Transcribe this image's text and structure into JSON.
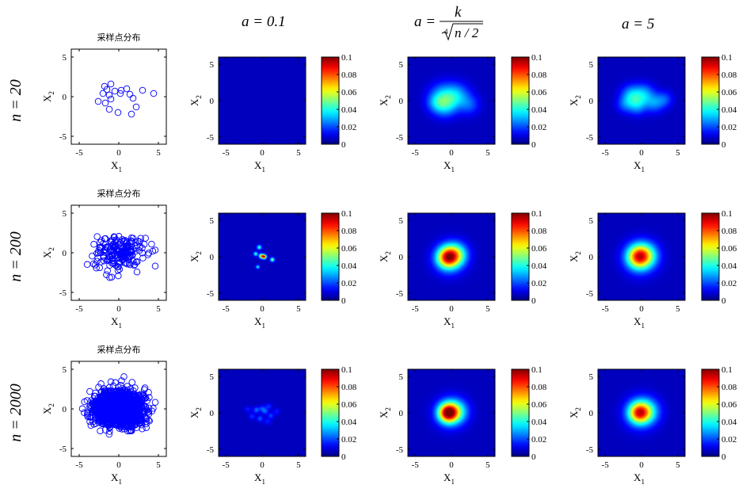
{
  "figure": {
    "column_titles": [
      "a = 0.1",
      "",
      "a = 5"
    ],
    "formula": {
      "a_eq": "a =",
      "numerator": "k",
      "root_index": "4",
      "radicand": "n / 2"
    },
    "row_labels": [
      "n = 20",
      "n = 200",
      "n = 2000"
    ],
    "scatter_title": "采样点分布",
    "x_axis_label": "X",
    "y_axis_label": "X",
    "x_sub": "1",
    "y_sub": "2",
    "colorbar_ticks": [
      "0.1",
      "0.08",
      "0.06",
      "0.04",
      "0.02",
      "0"
    ]
  },
  "colors": {
    "marker": "#0000ff",
    "colormap_low": "#00008f",
    "colormap_high": "#800000"
  },
  "chart_data": {
    "type": "figure-grid",
    "layout": {
      "rows": 3,
      "cols": 4
    },
    "rows": [
      {
        "n": 20,
        "scatter": {
          "type": "scatter",
          "title": "采样点分布",
          "xlim": [
            -6,
            6
          ],
          "ylim": [
            -6,
            6
          ],
          "xticks": [
            -5,
            0,
            5
          ],
          "yticks": [
            -5,
            0,
            5
          ],
          "xlabel": "X1",
          "ylabel": "X2",
          "points": [
            [
              -1.8,
              1.3
            ],
            [
              -1.0,
              1.6
            ],
            [
              -1.5,
              0.9
            ],
            [
              -2.0,
              0.4
            ],
            [
              -1.2,
              0.2
            ],
            [
              -0.5,
              0.7
            ],
            [
              0.3,
              0.8
            ],
            [
              0.2,
              0.4
            ],
            [
              -1.0,
              -0.3
            ],
            [
              -1.7,
              -0.8
            ],
            [
              -2.6,
              -0.6
            ],
            [
              -1.2,
              -1.6
            ],
            [
              -0.1,
              -2.0
            ],
            [
              1.0,
              1.0
            ],
            [
              1.4,
              0.3
            ],
            [
              1.8,
              -0.2
            ],
            [
              2.2,
              -1.3
            ],
            [
              1.6,
              -2.2
            ],
            [
              3.0,
              0.8
            ],
            [
              4.4,
              0.4
            ]
          ]
        },
        "density": [
          {
            "a": 0.1,
            "type": "heatmap",
            "xlim": [
              -6,
              6
            ],
            "ylim": [
              -6,
              6
            ],
            "clim": [
              0,
              0.1
            ],
            "peak": 0.0,
            "blobs": []
          },
          {
            "a": "k / (n/2)^(1/4)",
            "type": "heatmap",
            "xlim": [
              -6,
              6
            ],
            "ylim": [
              -6,
              6
            ],
            "clim": [
              0,
              0.1
            ],
            "peak": 0.03,
            "blobs": [
              [
                -1.2,
                0.5,
                1.3,
                0.026
              ],
              [
                0.8,
                0.7,
                1.2,
                0.022
              ],
              [
                -0.8,
                -0.8,
                1.1,
                0.018
              ],
              [
                2.5,
                -0.6,
                1.0,
                0.014
              ],
              [
                -2.2,
                -0.4,
                0.9,
                0.012
              ]
            ]
          },
          {
            "a": 5,
            "type": "heatmap",
            "xlim": [
              -6,
              6
            ],
            "ylim": [
              -6,
              6
            ],
            "clim": [
              0,
              0.1
            ],
            "peak": 0.032,
            "blobs": [
              [
                -1.4,
                0.7,
                1.0,
                0.026
              ],
              [
                0.4,
                0.9,
                1.0,
                0.022
              ],
              [
                -0.6,
                -0.7,
                0.9,
                0.02
              ],
              [
                1.8,
                -0.4,
                0.9,
                0.018
              ],
              [
                3.2,
                0.2,
                0.8,
                0.014
              ],
              [
                -2.4,
                -0.6,
                0.8,
                0.012
              ]
            ]
          }
        ]
      },
      {
        "n": 200,
        "scatter": {
          "type": "scatter",
          "title": "采样点分布",
          "xlim": [
            -6,
            6
          ],
          "ylim": [
            -6,
            6
          ],
          "xticks": [
            -5,
            0,
            5
          ],
          "yticks": [
            -5,
            0,
            5
          ],
          "xlabel": "X1",
          "ylabel": "X2",
          "cloud": {
            "n": 200,
            "center": [
              0,
              0
            ],
            "sx": 1.6,
            "sy": 1.1,
            "seed": 7
          }
        },
        "density": [
          {
            "a": 0.1,
            "type": "heatmap",
            "xlim": [
              -6,
              6
            ],
            "ylim": [
              -6,
              6
            ],
            "clim": [
              0,
              0.1
            ],
            "peak": 0.06,
            "blobs": [
              [
                -0.4,
                1.3,
                0.22,
                0.04
              ],
              [
                -0.1,
                0.1,
                0.22,
                0.07
              ],
              [
                0.3,
                0.0,
                0.2,
                0.09
              ],
              [
                1.4,
                -0.4,
                0.2,
                0.05
              ],
              [
                -0.6,
                -1.4,
                0.18,
                0.035
              ],
              [
                -0.9,
                0.4,
                0.2,
                0.04
              ]
            ]
          },
          {
            "a": "k / (n/2)^(1/4)",
            "type": "heatmap",
            "xlim": [
              -6,
              6
            ],
            "ylim": [
              -6,
              6
            ],
            "clim": [
              0,
              0.1
            ],
            "peak": 0.065,
            "blobs": [
              [
                -0.6,
                -0.1,
                1.0,
                0.06
              ],
              [
                0.6,
                0.3,
                1.1,
                0.04
              ],
              [
                -0.3,
                -0.3,
                1.5,
                0.02
              ]
            ]
          },
          {
            "a": 5,
            "type": "heatmap",
            "xlim": [
              -6,
              6
            ],
            "ylim": [
              -6,
              6
            ],
            "clim": [
              0,
              0.1
            ],
            "peak": 0.058,
            "blobs": [
              [
                -0.5,
                0.0,
                1.1,
                0.054
              ],
              [
                0.6,
                0.2,
                1.2,
                0.032
              ],
              [
                -0.2,
                -0.2,
                1.6,
                0.018
              ]
            ]
          }
        ]
      },
      {
        "n": 2000,
        "scatter": {
          "type": "scatter",
          "title": "采样点分布",
          "xlim": [
            -6,
            6
          ],
          "ylim": [
            -6,
            6
          ],
          "xticks": [
            -5,
            0,
            5
          ],
          "yticks": [
            -5,
            0,
            5
          ],
          "xlabel": "X1",
          "ylabel": "X2",
          "cloud": {
            "n": 2000,
            "center": [
              0,
              0
            ],
            "sx": 1.5,
            "sy": 1.0,
            "seed": 13
          }
        },
        "density": [
          {
            "a": 0.1,
            "type": "heatmap",
            "xlim": [
              -6,
              6
            ],
            "ylim": [
              -6,
              6
            ],
            "clim": [
              0,
              0.1
            ],
            "peak": 0.025,
            "blobs": [
              [
                -0.8,
                0.4,
                0.3,
                0.018
              ],
              [
                0.4,
                0.2,
                0.3,
                0.016
              ],
              [
                -0.3,
                -0.8,
                0.3,
                0.016
              ],
              [
                1.2,
                -0.4,
                0.3,
                0.014
              ],
              [
                -1.4,
                -0.5,
                0.3,
                0.012
              ],
              [
                0.9,
                0.9,
                0.3,
                0.012
              ],
              [
                0.0,
                0.6,
                0.3,
                0.014
              ],
              [
                2.0,
                0.2,
                0.3,
                0.01
              ],
              [
                -2.0,
                0.5,
                0.3,
                0.01
              ],
              [
                0.7,
                -1.2,
                0.3,
                0.01
              ]
            ]
          },
          {
            "a": "k / (n/2)^(1/4)",
            "type": "heatmap",
            "xlim": [
              -6,
              6
            ],
            "ylim": [
              -6,
              6
            ],
            "clim": [
              0,
              0.1
            ],
            "peak": 0.085,
            "blobs": [
              [
                -0.5,
                0.0,
                0.9,
                0.08
              ],
              [
                0.7,
                0.2,
                1.1,
                0.03
              ],
              [
                -0.2,
                0.0,
                1.5,
                0.018
              ]
            ]
          },
          {
            "a": 5,
            "type": "heatmap",
            "xlim": [
              -6,
              6
            ],
            "ylim": [
              -6,
              6
            ],
            "clim": [
              0,
              0.1
            ],
            "peak": 0.065,
            "blobs": [
              [
                -0.4,
                0.0,
                1.0,
                0.058
              ],
              [
                0.7,
                0.2,
                1.2,
                0.03
              ],
              [
                -0.2,
                0.0,
                1.6,
                0.016
              ]
            ]
          }
        ]
      }
    ]
  }
}
